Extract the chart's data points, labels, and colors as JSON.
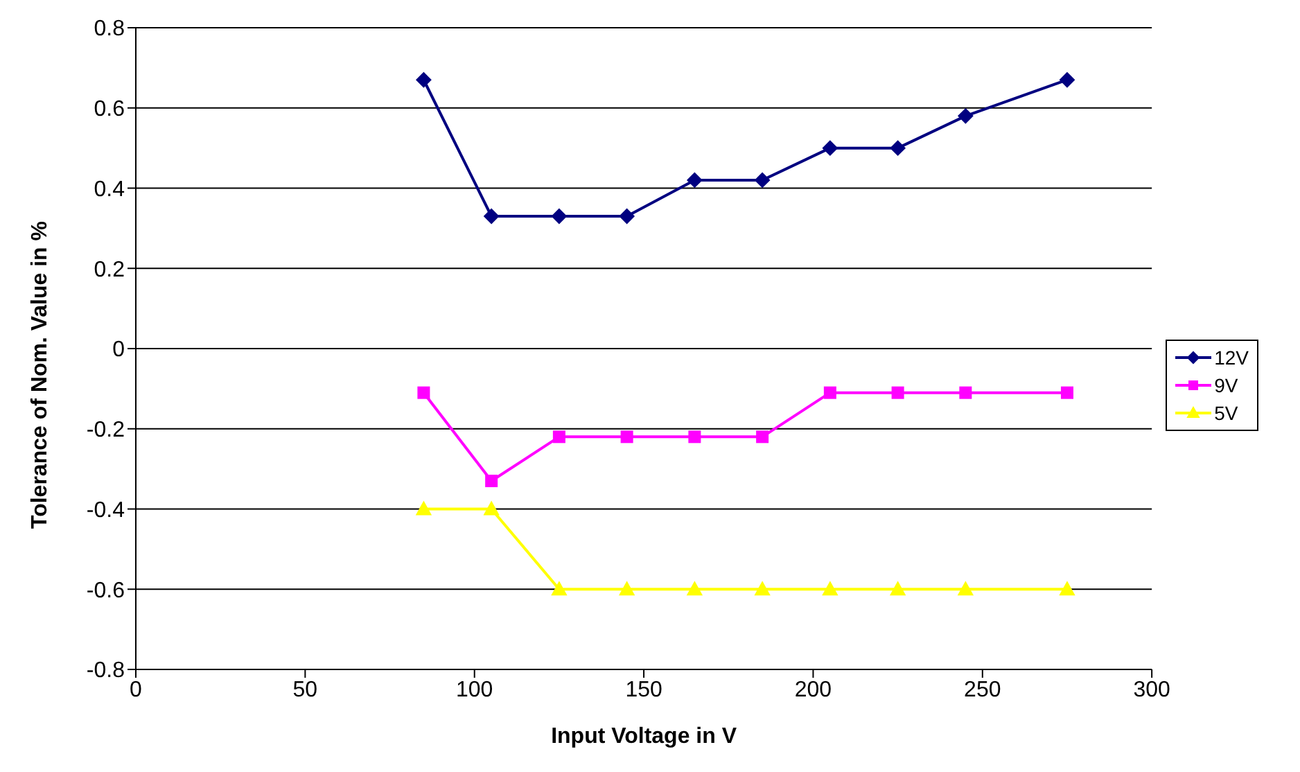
{
  "chart_data": {
    "type": "line",
    "xlabel": "Input Voltage in V",
    "ylabel": "Tolerance of Nom. Value in %",
    "x": [
      85,
      105,
      125,
      145,
      165,
      185,
      205,
      225,
      245,
      275
    ],
    "series": [
      {
        "name": "12V",
        "color": "#000080",
        "marker": "diamond",
        "values": [
          0.67,
          0.33,
          0.33,
          0.33,
          0.42,
          0.42,
          0.5,
          0.5,
          0.58,
          0.67
        ]
      },
      {
        "name": "9V",
        "color": "#ff00ff",
        "marker": "square",
        "values": [
          -0.11,
          -0.33,
          -0.22,
          -0.22,
          -0.22,
          -0.22,
          -0.11,
          -0.11,
          -0.11,
          -0.11
        ]
      },
      {
        "name": "5V",
        "color": "#ffff00",
        "marker": "triangle",
        "values": [
          -0.4,
          -0.4,
          -0.6,
          -0.6,
          -0.6,
          -0.6,
          -0.6,
          -0.6,
          -0.6,
          -0.6
        ]
      }
    ],
    "xlim": [
      0,
      300
    ],
    "xticks": [
      0,
      50,
      100,
      150,
      200,
      250,
      300
    ],
    "ylim": [
      -0.8,
      0.8
    ],
    "yticks": [
      -0.8,
      -0.6,
      -0.4,
      -0.2,
      0,
      0.2,
      0.4,
      0.6,
      0.8
    ],
    "grid": "y",
    "legend": "right",
    "line_style": "solid"
  }
}
